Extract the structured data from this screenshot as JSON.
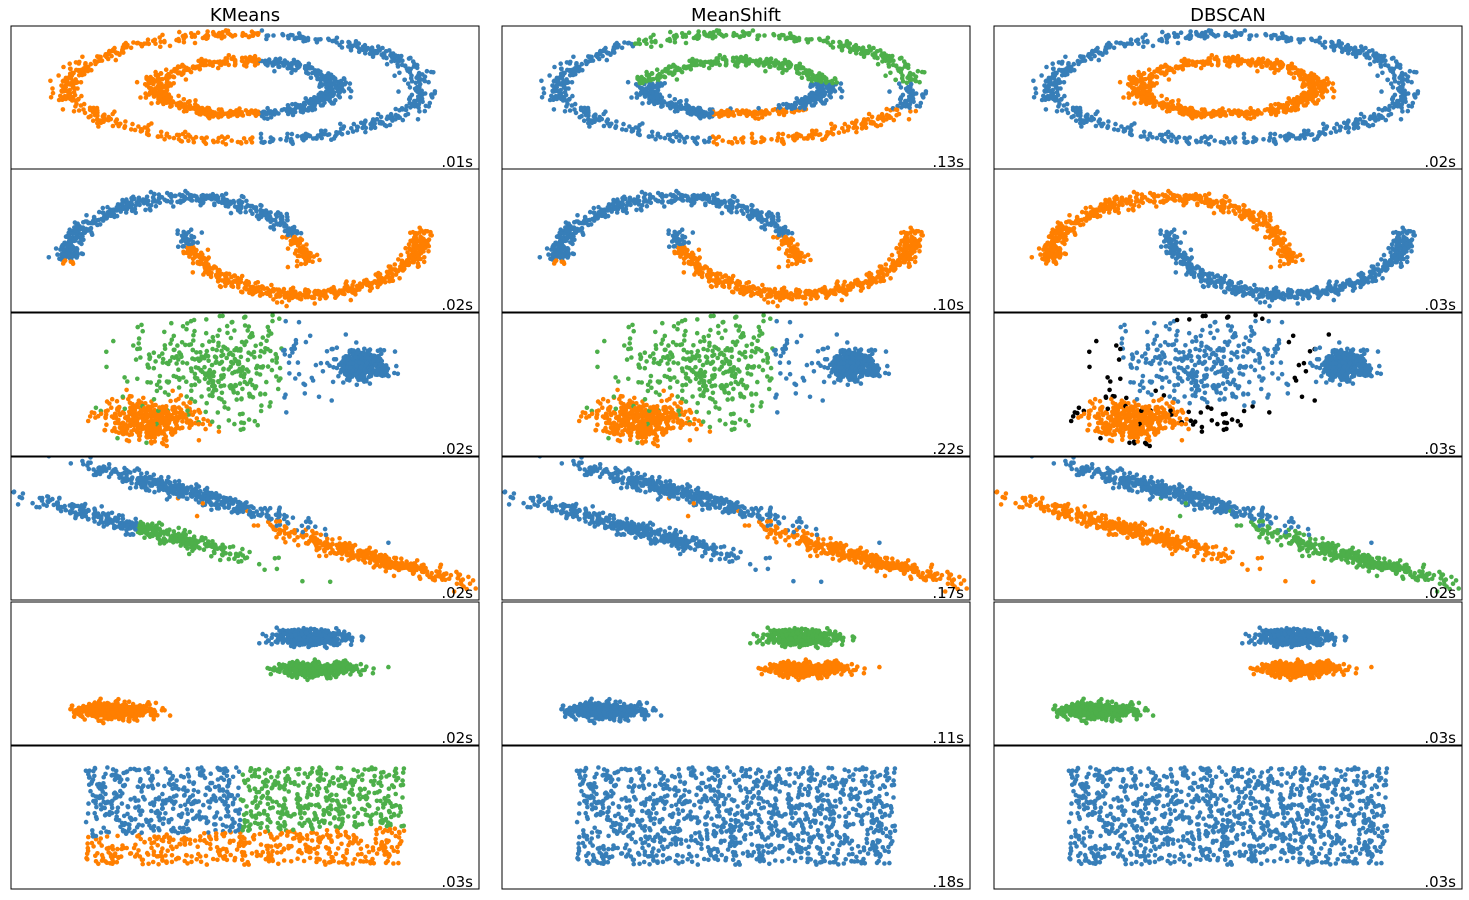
{
  "colors": {
    "blue": "#377eb8",
    "orange": "#ff7f00",
    "green": "#4daf4a",
    "pink": "#f781bf",
    "noise": "#000000"
  },
  "chart_data": {
    "type": "scatter",
    "grid": false,
    "legend": "none",
    "columns": [
      "KMeans",
      "MeanShift",
      "DBSCAN"
    ],
    "rows": [
      {
        "dataset": "noisy_circles",
        "times": [
          ".01s",
          ".13s",
          ".02s"
        ],
        "labelings": [
          "kmeans_halves",
          "meanshift_three",
          "rings"
        ]
      },
      {
        "dataset": "noisy_moons",
        "times": [
          ".02s",
          ".10s",
          ".03s"
        ],
        "labelings": [
          "moons_linear_split",
          "moons_linear_split",
          "moons"
        ]
      },
      {
        "dataset": "varied_blobs",
        "times": [
          ".02s",
          ".22s",
          ".03s"
        ],
        "labelings": [
          "blobs_three",
          "blobs_three",
          "blobs_two_with_noise"
        ]
      },
      {
        "dataset": "anisotropic_blobs",
        "times": [
          ".02s",
          ".17s",
          ".02s"
        ],
        "labelings": [
          "aniso_kmeans",
          "aniso_meanshift",
          "aniso_dbscan"
        ]
      },
      {
        "dataset": "blobs",
        "times": [
          ".02s",
          ".11s",
          ".03s"
        ],
        "labelings": [
          "blobs_kmeans",
          "blobs_meanshift",
          "blobs_dbscan"
        ]
      },
      {
        "dataset": "no_structure",
        "times": [
          ".03s",
          ".18s",
          ".03s"
        ],
        "labelings": [
          "uniform_kmeans",
          "uniform_single",
          "uniform_single"
        ]
      }
    ]
  }
}
